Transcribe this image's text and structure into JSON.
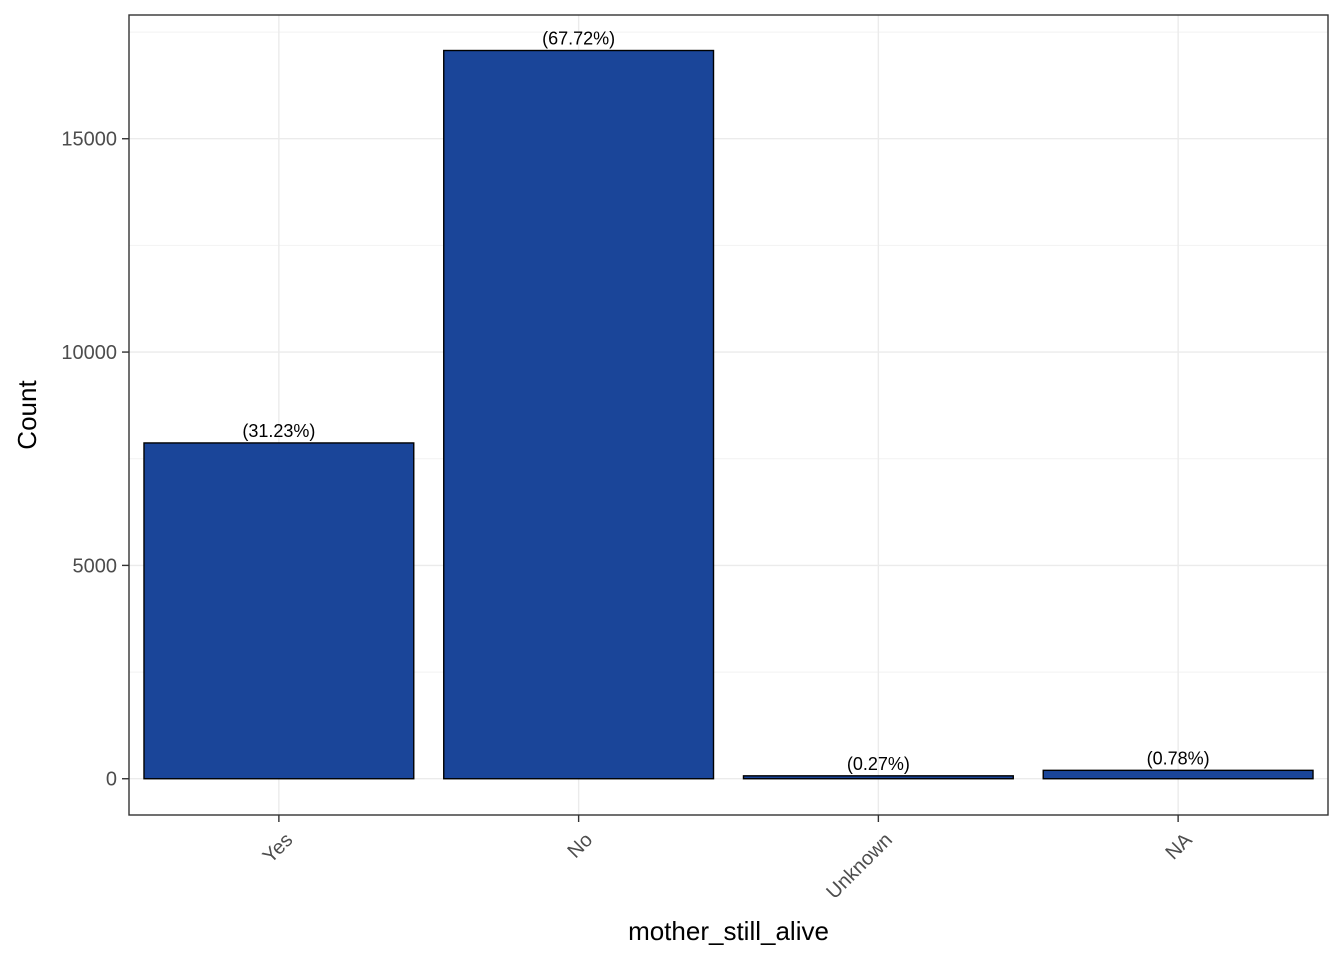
{
  "chart_data": {
    "type": "bar",
    "xlabel": "mother_still_alive",
    "ylabel": "Count",
    "categories": [
      "Yes",
      "No",
      "Unknown",
      "NA"
    ],
    "values": [
      7870,
      17068,
      68,
      197
    ],
    "data_labels": [
      "(31.23%)",
      "(67.72%)",
      "(0.27%)",
      "(0.78%)"
    ],
    "ylim": [
      -850,
      17900
    ],
    "yticks": [
      0,
      5000,
      10000,
      15000
    ],
    "ytick_labels": [
      "0",
      "5000",
      "10000",
      "15000"
    ],
    "grid": true,
    "legend": "none",
    "colors": {
      "bar_fill": "#1a4599",
      "bar_stroke": "#000000",
      "grid_major": "#ebebeb",
      "grid_minor": "#f2f2f2",
      "panel_border": "#333333"
    }
  }
}
